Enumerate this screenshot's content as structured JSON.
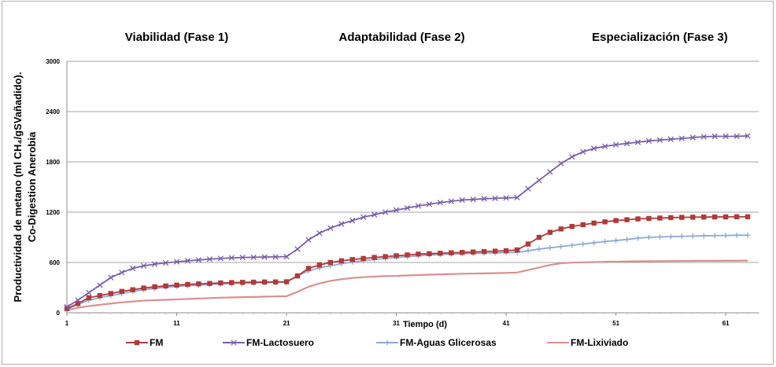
{
  "chart_data": {
    "type": "line",
    "ylabel_line1": "Productividad de metano (ml CH₄/gSVañadido).",
    "ylabel_line2": "Co-Digestion Anerobia",
    "xlabel": "Tiempo (d)",
    "xlim": [
      1,
      64
    ],
    "ylim": [
      0,
      3000
    ],
    "yticks": [
      0,
      600,
      1200,
      1800,
      2400,
      3000
    ],
    "xticks": [
      1,
      11,
      21,
      31,
      41,
      51,
      61
    ],
    "grid": true,
    "legend_position": "bottom",
    "phases": [
      {
        "label": "Viabilidad (Fase 1)",
        "center_x": 11
      },
      {
        "label": "Adaptabilidad (Fase 2)",
        "center_x": 31.5
      },
      {
        "label": "Especialización (Fase 3)",
        "center_x": 55
      }
    ],
    "series": [
      {
        "name": "FM",
        "color": "#b03a3a",
        "marker": "square",
        "values": [
          [
            1,
            50
          ],
          [
            2,
            110
          ],
          [
            3,
            180
          ],
          [
            4,
            205
          ],
          [
            5,
            230
          ],
          [
            6,
            255
          ],
          [
            7,
            275
          ],
          [
            8,
            295
          ],
          [
            9,
            310
          ],
          [
            10,
            320
          ],
          [
            11,
            330
          ],
          [
            12,
            338
          ],
          [
            13,
            345
          ],
          [
            14,
            350
          ],
          [
            15,
            356
          ],
          [
            16,
            360
          ],
          [
            17,
            363
          ],
          [
            18,
            365
          ],
          [
            19,
            367
          ],
          [
            20,
            368
          ],
          [
            21,
            370
          ],
          [
            22,
            440
          ],
          [
            23,
            530
          ],
          [
            24,
            570
          ],
          [
            25,
            600
          ],
          [
            26,
            620
          ],
          [
            27,
            635
          ],
          [
            28,
            648
          ],
          [
            29,
            660
          ],
          [
            30,
            670
          ],
          [
            31,
            680
          ],
          [
            32,
            690
          ],
          [
            33,
            700
          ],
          [
            34,
            705
          ],
          [
            35,
            710
          ],
          [
            36,
            715
          ],
          [
            37,
            720
          ],
          [
            38,
            725
          ],
          [
            39,
            730
          ],
          [
            40,
            735
          ],
          [
            41,
            740
          ],
          [
            42,
            750
          ],
          [
            43,
            820
          ],
          [
            44,
            900
          ],
          [
            45,
            960
          ],
          [
            46,
            1000
          ],
          [
            47,
            1030
          ],
          [
            48,
            1050
          ],
          [
            49,
            1070
          ],
          [
            50,
            1085
          ],
          [
            51,
            1100
          ],
          [
            52,
            1110
          ],
          [
            53,
            1120
          ],
          [
            54,
            1125
          ],
          [
            55,
            1130
          ],
          [
            56,
            1135
          ],
          [
            57,
            1138
          ],
          [
            58,
            1140
          ],
          [
            59,
            1142
          ],
          [
            60,
            1143
          ],
          [
            61,
            1144
          ],
          [
            62,
            1145
          ],
          [
            63,
            1145
          ]
        ]
      },
      {
        "name": "FM-Lactosuero",
        "color": "#7b5ea7",
        "marker": "x",
        "values": [
          [
            1,
            70
          ],
          [
            2,
            150
          ],
          [
            3,
            240
          ],
          [
            4,
            330
          ],
          [
            5,
            420
          ],
          [
            6,
            480
          ],
          [
            7,
            530
          ],
          [
            8,
            560
          ],
          [
            9,
            580
          ],
          [
            10,
            595
          ],
          [
            11,
            608
          ],
          [
            12,
            620
          ],
          [
            13,
            630
          ],
          [
            14,
            640
          ],
          [
            15,
            648
          ],
          [
            16,
            655
          ],
          [
            17,
            660
          ],
          [
            18,
            662
          ],
          [
            19,
            665
          ],
          [
            20,
            667
          ],
          [
            21,
            670
          ],
          [
            22,
            760
          ],
          [
            23,
            870
          ],
          [
            24,
            950
          ],
          [
            25,
            1010
          ],
          [
            26,
            1060
          ],
          [
            27,
            1100
          ],
          [
            28,
            1140
          ],
          [
            29,
            1170
          ],
          [
            30,
            1200
          ],
          [
            31,
            1225
          ],
          [
            32,
            1250
          ],
          [
            33,
            1275
          ],
          [
            34,
            1295
          ],
          [
            35,
            1315
          ],
          [
            36,
            1330
          ],
          [
            37,
            1345
          ],
          [
            38,
            1352
          ],
          [
            39,
            1360
          ],
          [
            40,
            1365
          ],
          [
            41,
            1370
          ],
          [
            42,
            1375
          ],
          [
            43,
            1480
          ],
          [
            44,
            1580
          ],
          [
            45,
            1680
          ],
          [
            46,
            1780
          ],
          [
            47,
            1860
          ],
          [
            48,
            1920
          ],
          [
            49,
            1960
          ],
          [
            50,
            1985
          ],
          [
            51,
            2005
          ],
          [
            52,
            2020
          ],
          [
            53,
            2035
          ],
          [
            54,
            2050
          ],
          [
            55,
            2060
          ],
          [
            56,
            2070
          ],
          [
            57,
            2080
          ],
          [
            58,
            2090
          ],
          [
            59,
            2100
          ],
          [
            60,
            2105
          ],
          [
            61,
            2105
          ],
          [
            62,
            2105
          ],
          [
            63,
            2110
          ]
        ]
      },
      {
        "name": "FM-Aguas Glicerosas",
        "color": "#8ea9d4",
        "marker": "plus",
        "values": [
          [
            1,
            40
          ],
          [
            2,
            100
          ],
          [
            3,
            150
          ],
          [
            4,
            180
          ],
          [
            5,
            205
          ],
          [
            6,
            230
          ],
          [
            7,
            255
          ],
          [
            8,
            275
          ],
          [
            9,
            290
          ],
          [
            10,
            305
          ],
          [
            11,
            315
          ],
          [
            12,
            323
          ],
          [
            13,
            330
          ],
          [
            14,
            337
          ],
          [
            15,
            343
          ],
          [
            16,
            348
          ],
          [
            17,
            352
          ],
          [
            18,
            356
          ],
          [
            19,
            360
          ],
          [
            20,
            362
          ],
          [
            21,
            365
          ],
          [
            22,
            440
          ],
          [
            23,
            500
          ],
          [
            24,
            535
          ],
          [
            25,
            560
          ],
          [
            26,
            585
          ],
          [
            27,
            605
          ],
          [
            28,
            620
          ],
          [
            29,
            635
          ],
          [
            30,
            648
          ],
          [
            31,
            660
          ],
          [
            32,
            670
          ],
          [
            33,
            680
          ],
          [
            34,
            688
          ],
          [
            35,
            695
          ],
          [
            36,
            700
          ],
          [
            37,
            705
          ],
          [
            38,
            708
          ],
          [
            39,
            711
          ],
          [
            40,
            714
          ],
          [
            41,
            717
          ],
          [
            42,
            720
          ],
          [
            43,
            740
          ],
          [
            44,
            760
          ],
          [
            45,
            775
          ],
          [
            46,
            790
          ],
          [
            47,
            805
          ],
          [
            48,
            820
          ],
          [
            49,
            835
          ],
          [
            50,
            850
          ],
          [
            51,
            862
          ],
          [
            52,
            875
          ],
          [
            53,
            890
          ],
          [
            54,
            900
          ],
          [
            55,
            905
          ],
          [
            56,
            908
          ],
          [
            57,
            912
          ],
          [
            58,
            915
          ],
          [
            59,
            918
          ],
          [
            60,
            920
          ],
          [
            61,
            922
          ],
          [
            62,
            925
          ],
          [
            63,
            925
          ]
        ]
      },
      {
        "name": "FM-Lixiviado",
        "color": "#d99090",
        "marker": "none",
        "values": [
          [
            1,
            30
          ],
          [
            2,
            60
          ],
          [
            3,
            80
          ],
          [
            4,
            95
          ],
          [
            5,
            110
          ],
          [
            6,
            125
          ],
          [
            7,
            135
          ],
          [
            8,
            145
          ],
          [
            9,
            150
          ],
          [
            10,
            155
          ],
          [
            11,
            160
          ],
          [
            12,
            165
          ],
          [
            13,
            170
          ],
          [
            14,
            175
          ],
          [
            15,
            180
          ],
          [
            16,
            183
          ],
          [
            17,
            186
          ],
          [
            18,
            189
          ],
          [
            19,
            192
          ],
          [
            20,
            195
          ],
          [
            21,
            198
          ],
          [
            22,
            250
          ],
          [
            23,
            310
          ],
          [
            24,
            350
          ],
          [
            25,
            380
          ],
          [
            26,
            400
          ],
          [
            27,
            415
          ],
          [
            28,
            425
          ],
          [
            29,
            432
          ],
          [
            30,
            438
          ],
          [
            31,
            440
          ],
          [
            32,
            445
          ],
          [
            33,
            450
          ],
          [
            34,
            455
          ],
          [
            35,
            458
          ],
          [
            36,
            462
          ],
          [
            37,
            466
          ],
          [
            38,
            468
          ],
          [
            39,
            470
          ],
          [
            40,
            472
          ],
          [
            41,
            475
          ],
          [
            42,
            480
          ],
          [
            43,
            510
          ],
          [
            44,
            540
          ],
          [
            45,
            570
          ],
          [
            46,
            590
          ],
          [
            47,
            598
          ],
          [
            48,
            602
          ],
          [
            49,
            605
          ],
          [
            50,
            608
          ],
          [
            51,
            610
          ],
          [
            52,
            612
          ],
          [
            53,
            614
          ],
          [
            54,
            615
          ],
          [
            55,
            616
          ],
          [
            56,
            617
          ],
          [
            57,
            618
          ],
          [
            58,
            619
          ],
          [
            59,
            620
          ],
          [
            60,
            620
          ],
          [
            61,
            621
          ],
          [
            62,
            621
          ],
          [
            63,
            622
          ]
        ]
      }
    ]
  }
}
